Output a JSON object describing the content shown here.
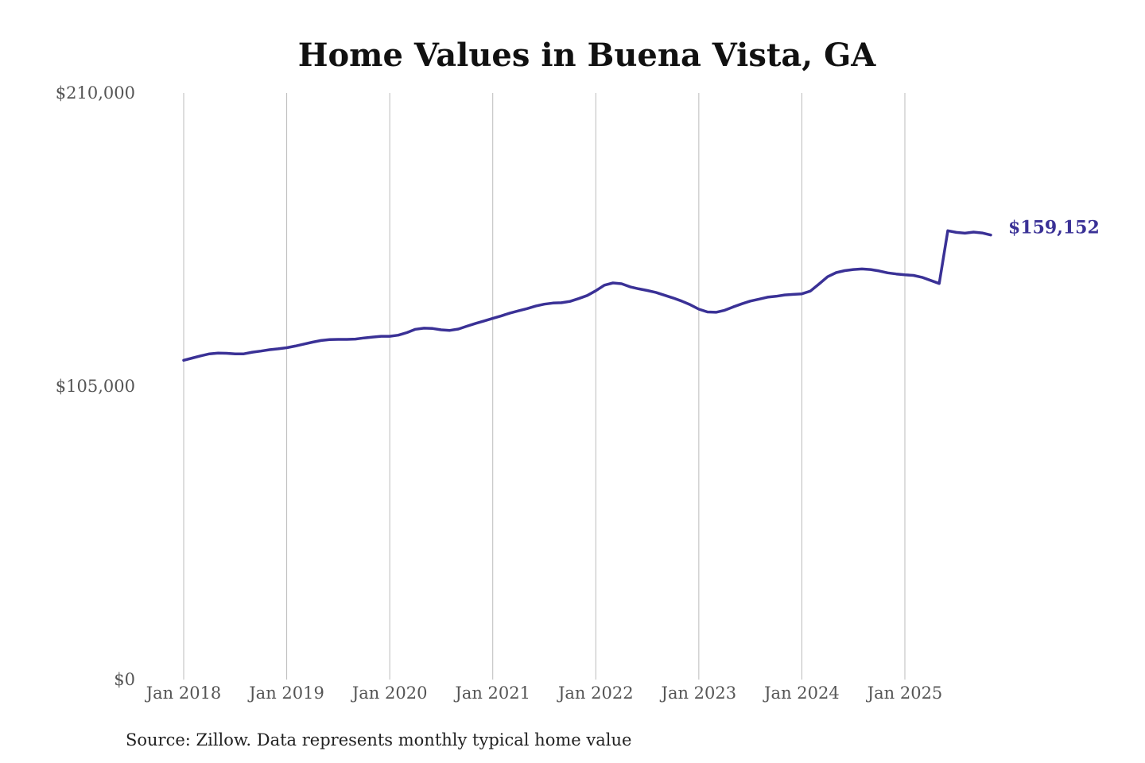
{
  "colors": {
    "series": "#3a3196",
    "title": "#111111",
    "tick": "#555555",
    "grid": "#bbbbbb"
  },
  "chart_data": {
    "type": "line",
    "title": "Home Values in Buena Vista, GA",
    "source": "Source: Zillow. Data represents monthly typical home value",
    "ylim": [
      0,
      210000
    ],
    "yticks": [
      0,
      105000,
      210000
    ],
    "ytick_labels": [
      "$0",
      "$105,000",
      "$210,000"
    ],
    "xlim": [
      "2018-01",
      "2025-11"
    ],
    "xticks": [
      "2018-01",
      "2019-01",
      "2020-01",
      "2021-01",
      "2022-01",
      "2023-01",
      "2024-01",
      "2025-01"
    ],
    "xtick_labels": [
      "Jan 2018",
      "Jan 2019",
      "Jan 2020",
      "Jan 2021",
      "Jan 2022",
      "Jan 2023",
      "Jan 2024",
      "Jan 2025"
    ],
    "grid": "vertical",
    "end_label": "$159,152",
    "series": [
      {
        "points": [
          [
            "2018-01",
            114300
          ],
          [
            "2018-02",
            115100
          ],
          [
            "2018-03",
            115900
          ],
          [
            "2018-04",
            116600
          ],
          [
            "2018-05",
            116900
          ],
          [
            "2018-06",
            116800
          ],
          [
            "2018-07",
            116600
          ],
          [
            "2018-08",
            116600
          ],
          [
            "2018-09",
            117200
          ],
          [
            "2018-10",
            117600
          ],
          [
            "2018-11",
            118100
          ],
          [
            "2018-12",
            118400
          ],
          [
            "2019-01",
            118800
          ],
          [
            "2019-02",
            119400
          ],
          [
            "2019-03",
            120100
          ],
          [
            "2019-04",
            120800
          ],
          [
            "2019-05",
            121400
          ],
          [
            "2019-06",
            121700
          ],
          [
            "2019-07",
            121800
          ],
          [
            "2019-08",
            121800
          ],
          [
            "2019-09",
            121900
          ],
          [
            "2019-10",
            122300
          ],
          [
            "2019-11",
            122600
          ],
          [
            "2019-12",
            122900
          ],
          [
            "2020-01",
            122900
          ],
          [
            "2020-02",
            123300
          ],
          [
            "2020-03",
            124200
          ],
          [
            "2020-04",
            125400
          ],
          [
            "2020-05",
            125800
          ],
          [
            "2020-06",
            125700
          ],
          [
            "2020-07",
            125200
          ],
          [
            "2020-08",
            125000
          ],
          [
            "2020-09",
            125500
          ],
          [
            "2020-10",
            126500
          ],
          [
            "2020-11",
            127500
          ],
          [
            "2020-12",
            128400
          ],
          [
            "2021-01",
            129300
          ],
          [
            "2021-02",
            130200
          ],
          [
            "2021-03",
            131200
          ],
          [
            "2021-04",
            132000
          ],
          [
            "2021-05",
            132800
          ],
          [
            "2021-06",
            133700
          ],
          [
            "2021-07",
            134400
          ],
          [
            "2021-08",
            134800
          ],
          [
            "2021-09",
            134900
          ],
          [
            "2021-10",
            135400
          ],
          [
            "2021-11",
            136400
          ],
          [
            "2021-12",
            137500
          ],
          [
            "2022-01",
            139200
          ],
          [
            "2022-02",
            141200
          ],
          [
            "2022-03",
            142000
          ],
          [
            "2022-04",
            141700
          ],
          [
            "2022-05",
            140600
          ],
          [
            "2022-06",
            139900
          ],
          [
            "2022-07",
            139300
          ],
          [
            "2022-08",
            138600
          ],
          [
            "2022-09",
            137600
          ],
          [
            "2022-10",
            136600
          ],
          [
            "2022-11",
            135500
          ],
          [
            "2022-12",
            134200
          ],
          [
            "2023-01",
            132600
          ],
          [
            "2023-02",
            131600
          ],
          [
            "2023-03",
            131500
          ],
          [
            "2023-04",
            132200
          ],
          [
            "2023-05",
            133400
          ],
          [
            "2023-06",
            134500
          ],
          [
            "2023-07",
            135500
          ],
          [
            "2023-08",
            136200
          ],
          [
            "2023-09",
            136900
          ],
          [
            "2023-10",
            137200
          ],
          [
            "2023-11",
            137700
          ],
          [
            "2023-12",
            137900
          ],
          [
            "2024-01",
            138100
          ],
          [
            "2024-02",
            139100
          ],
          [
            "2024-03",
            141600
          ],
          [
            "2024-04",
            144200
          ],
          [
            "2024-05",
            145700
          ],
          [
            "2024-06",
            146400
          ],
          [
            "2024-07",
            146800
          ],
          [
            "2024-08",
            147000
          ],
          [
            "2024-09",
            146800
          ],
          [
            "2024-10",
            146300
          ],
          [
            "2024-11",
            145600
          ],
          [
            "2024-12",
            145200
          ],
          [
            "2025-01",
            144900
          ],
          [
            "2025-02",
            144700
          ],
          [
            "2025-03",
            144000
          ],
          [
            "2025-04",
            142900
          ],
          [
            "2025-05",
            141800
          ],
          [
            "2025-06",
            160700
          ],
          [
            "2025-07",
            160100
          ],
          [
            "2025-08",
            159800
          ],
          [
            "2025-09",
            160200
          ],
          [
            "2025-10",
            159900
          ],
          [
            "2025-11",
            159152
          ]
        ]
      }
    ]
  }
}
